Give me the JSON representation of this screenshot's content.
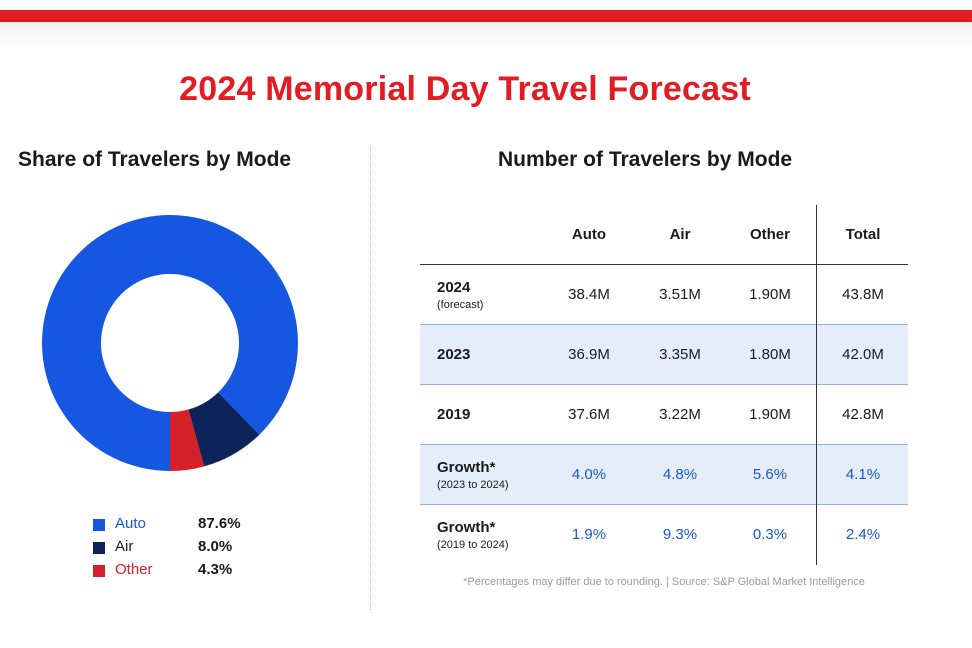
{
  "title": "2024 Memorial Day Travel Forecast",
  "colors": {
    "accent": "#e31b23",
    "auto": "#1557e0",
    "air": "#0c2459",
    "other": "#d62027",
    "growth_text": "#1a57d6"
  },
  "share_section": {
    "title": "Share of Travelers by Mode"
  },
  "number_section": {
    "title": "Number of Travelers by Mode"
  },
  "chart_data": [
    {
      "type": "pie",
      "title": "Share of Travelers by Mode",
      "donut": true,
      "categories": [
        "Auto",
        "Air",
        "Other"
      ],
      "values": [
        87.6,
        8.0,
        4.3
      ],
      "labels": [
        "87.6%",
        "8.0%",
        "4.3%"
      ],
      "colors": [
        "#1557e0",
        "#0c2459",
        "#d62027"
      ],
      "legend": "bottom"
    },
    {
      "type": "table",
      "title": "Number of Travelers by Mode",
      "columns": [
        "",
        "Auto",
        "Air",
        "Other",
        "Total"
      ],
      "rows": [
        {
          "label": "2024",
          "sub": "(forecast)",
          "values": [
            "38.4M",
            "3.51M",
            "1.90M",
            "43.8M"
          ]
        },
        {
          "label": "2023",
          "sub": "",
          "values": [
            "36.9M",
            "3.35M",
            "1.80M",
            "42.0M"
          ]
        },
        {
          "label": "2019",
          "sub": "",
          "values": [
            "37.6M",
            "3.22M",
            "1.90M",
            "42.8M"
          ]
        },
        {
          "label": "Growth*",
          "sub": "(2023 to 2024)",
          "values": [
            "4.0%",
            "4.8%",
            "5.6%",
            "4.1%"
          ]
        },
        {
          "label": "Growth*",
          "sub": "(2019 to 2024)",
          "values": [
            "1.9%",
            "9.3%",
            "0.3%",
            "2.4%"
          ]
        }
      ]
    }
  ],
  "footnote": "*Percentages may differ due to rounding. | Source: S&P Global Market Intelligence"
}
